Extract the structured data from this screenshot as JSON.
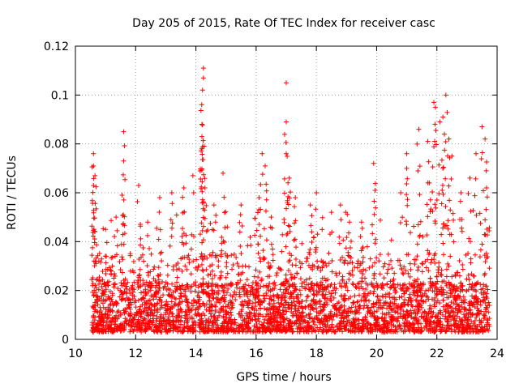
{
  "chart_data": {
    "type": "scatter",
    "title": "Day 205 of 2015, Rate Of TEC Index for receiver casc",
    "xlabel": "GPS time / hours",
    "ylabel": "ROTI / TECUs",
    "xlim": [
      10,
      24
    ],
    "ylim": [
      0,
      0.12
    ],
    "x_ticks": [
      10,
      12,
      14,
      16,
      18,
      20,
      22,
      24
    ],
    "x_tick_labels": [
      "10",
      "12",
      "14",
      "16",
      "18",
      "20",
      "22",
      "24"
    ],
    "y_ticks": [
      0,
      0.02,
      0.04,
      0.06,
      0.08,
      0.1,
      0.12
    ],
    "y_tick_labels": [
      "0",
      "0.02",
      "0.04",
      "0.06",
      "0.08",
      "0.1",
      "0.12"
    ],
    "grid": true,
    "marker": "+",
    "series": [
      {
        "name": "ROTI",
        "color": "#ff0000",
        "x_range": [
          10.55,
          23.75
        ],
        "typical_range": [
          0.003,
          0.03
        ],
        "note": "Thousands of dense points; envelope peaks listed below.",
        "peaks": [
          [
            10.6,
            0.076
          ],
          [
            10.6,
            0.071
          ],
          [
            10.65,
            0.067
          ],
          [
            10.6,
            0.063
          ],
          [
            11.0,
            0.045
          ],
          [
            11.35,
            0.05
          ],
          [
            11.6,
            0.085
          ],
          [
            11.6,
            0.073
          ],
          [
            11.55,
            0.059
          ],
          [
            12.1,
            0.063
          ],
          [
            12.4,
            0.048
          ],
          [
            12.8,
            0.058
          ],
          [
            13.2,
            0.06
          ],
          [
            13.6,
            0.062
          ],
          [
            13.9,
            0.067
          ],
          [
            14.25,
            0.111
          ],
          [
            14.25,
            0.107
          ],
          [
            14.22,
            0.102
          ],
          [
            14.2,
            0.088
          ],
          [
            14.2,
            0.083
          ],
          [
            14.2,
            0.078
          ],
          [
            14.3,
            0.062
          ],
          [
            14.6,
            0.055
          ],
          [
            14.9,
            0.068
          ],
          [
            15.5,
            0.055
          ],
          [
            16.2,
            0.076
          ],
          [
            16.3,
            0.071
          ],
          [
            16.1,
            0.058
          ],
          [
            16.5,
            0.05
          ],
          [
            17.0,
            0.105
          ],
          [
            17.0,
            0.089
          ],
          [
            17.0,
            0.076
          ],
          [
            17.1,
            0.066
          ],
          [
            17.3,
            0.058
          ],
          [
            17.8,
            0.055
          ],
          [
            18.0,
            0.06
          ],
          [
            18.5,
            0.052
          ],
          [
            18.8,
            0.055
          ],
          [
            19.1,
            0.048
          ],
          [
            19.5,
            0.048
          ],
          [
            19.9,
            0.072
          ],
          [
            19.95,
            0.061
          ],
          [
            20.8,
            0.06
          ],
          [
            21.0,
            0.076
          ],
          [
            21.4,
            0.086
          ],
          [
            21.0,
            0.07
          ],
          [
            21.7,
            0.081
          ],
          [
            21.75,
            0.064
          ],
          [
            21.9,
            0.097
          ],
          [
            21.95,
            0.095
          ],
          [
            22.1,
            0.089
          ],
          [
            22.2,
            0.091
          ],
          [
            22.3,
            0.1
          ],
          [
            22.25,
            0.084
          ],
          [
            22.4,
            0.082
          ],
          [
            22.2,
            0.07
          ],
          [
            22.5,
            0.075
          ],
          [
            22.8,
            0.06
          ],
          [
            23.1,
            0.066
          ],
          [
            23.3,
            0.076
          ],
          [
            23.5,
            0.087
          ],
          [
            23.6,
            0.082
          ],
          [
            23.65,
            0.062
          ]
        ]
      }
    ]
  }
}
